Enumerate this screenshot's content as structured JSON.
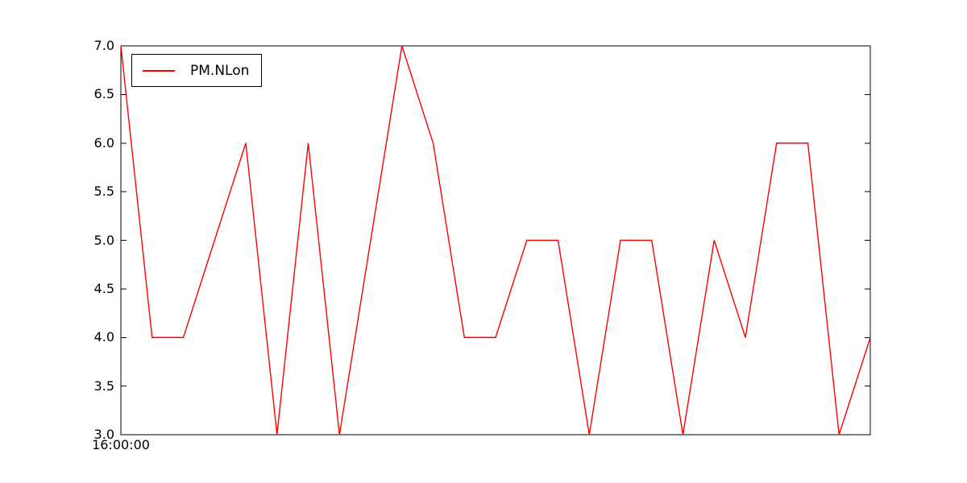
{
  "chart_data": {
    "type": "line",
    "title": "",
    "xlabel": "",
    "ylabel": "",
    "background": "#ffffff",
    "frame_color": "#000000",
    "grid": false,
    "ylim": [
      3.0,
      7.0
    ],
    "y_ticks": [
      7.0,
      6.5,
      6.0,
      5.5,
      5.0,
      4.5,
      4.0,
      3.5,
      3.0
    ],
    "y_tick_labels": [
      "7.0",
      "6.5",
      "6.0",
      "5.5",
      "5.0",
      "4.5",
      "4.0",
      "3.5",
      "3.0"
    ],
    "x_tick_labels": [
      "16:00:00"
    ],
    "legend": {
      "position": "upper-left",
      "entries": [
        "PM.NLon"
      ]
    },
    "series": [
      {
        "name": "PM.NLon",
        "color": "#ff0000",
        "values": [
          7,
          4,
          4,
          5,
          6,
          3,
          6,
          3,
          5,
          7,
          6,
          4,
          4,
          5,
          5,
          3,
          5,
          5,
          3,
          5,
          4,
          6,
          6,
          3,
          4
        ]
      }
    ]
  }
}
